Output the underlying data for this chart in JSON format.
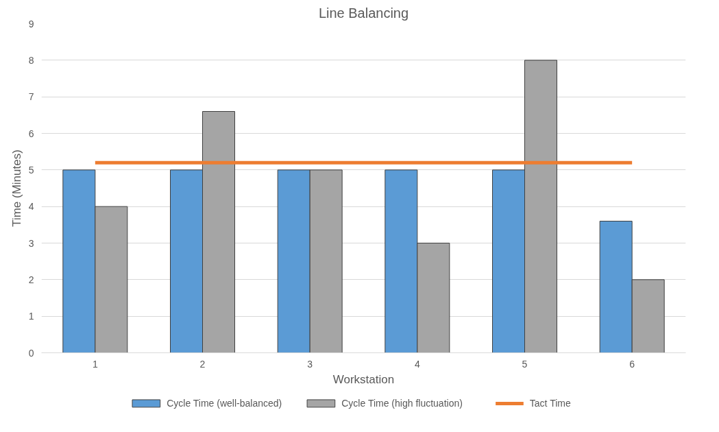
{
  "chart_data": {
    "type": "bar",
    "title": "Line Balancing",
    "xlabel": "Workstation",
    "ylabel": "Time (Minutes)",
    "categories": [
      "1",
      "2",
      "3",
      "4",
      "5",
      "6"
    ],
    "series": [
      {
        "name": "Cycle Time (well-balanced)",
        "color": "#5b9bd5",
        "values": [
          5,
          5,
          5,
          5,
          5,
          3.6
        ]
      },
      {
        "name": "Cycle Time (high fluctuation)",
        "color": "#a5a5a5",
        "values": [
          4,
          6.6,
          5,
          3,
          8,
          2
        ]
      },
      {
        "name": "Tact Time",
        "type": "line",
        "color": "#ed7d31",
        "values": [
          5.2,
          5.2,
          5.2,
          5.2,
          5.2,
          5.2
        ]
      }
    ],
    "ylim": [
      0,
      9
    ],
    "yticks": [
      0,
      1,
      2,
      3,
      4,
      5,
      6,
      7,
      8,
      9
    ],
    "grid": "y",
    "legend": "bottom"
  }
}
